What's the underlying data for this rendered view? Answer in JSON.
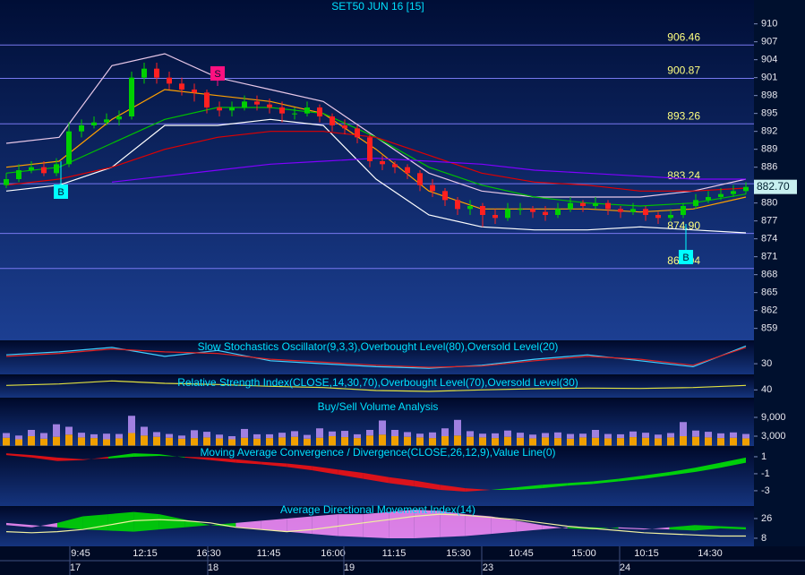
{
  "chart_data": [
    {
      "type": "candlestick",
      "title": "SET50 JUN 16  [15]",
      "open": [
        883,
        884,
        885.5,
        886,
        885,
        886.5,
        892,
        893,
        893.5,
        894,
        894.5,
        901,
        902.5,
        901,
        900,
        899,
        898.5,
        896,
        895.5,
        896,
        897,
        896.5,
        896,
        895,
        895,
        896,
        894.5,
        893,
        892.5,
        891,
        887,
        886.5,
        886,
        885,
        883,
        882,
        880.5,
        879,
        879.5,
        878,
        877.5,
        879,
        879,
        878.5,
        878,
        879,
        880,
        879.5,
        880,
        879,
        878.5,
        879,
        878,
        877.5,
        878,
        879.5,
        880.5,
        881,
        881.5,
        882
      ],
      "high": [
        885,
        886.5,
        887,
        887,
        887.5,
        893.5,
        894,
        894.5,
        895,
        895.5,
        902,
        903.5,
        903.5,
        902,
        901,
        900,
        899,
        897,
        897,
        898,
        898,
        897.5,
        897,
        896,
        897,
        896.5,
        895,
        894,
        893,
        891.5,
        888,
        887,
        886.5,
        885.5,
        884,
        882.5,
        881,
        880.5,
        880,
        879,
        880,
        880,
        879.5,
        879.5,
        880,
        881,
        880.5,
        881,
        880.5,
        879.5,
        880,
        879.5,
        878.5,
        879,
        880,
        881.5,
        882,
        882.5,
        883,
        883.5
      ],
      "low": [
        882.5,
        883.5,
        885,
        884.5,
        884.5,
        886,
        891,
        892.5,
        893,
        893,
        894,
        900,
        900,
        899,
        898,
        897,
        895,
        894.5,
        894.5,
        895.5,
        895.5,
        895,
        893.5,
        894,
        894.5,
        893.5,
        892,
        891.5,
        890,
        886,
        885.5,
        885,
        884,
        882,
        881,
        879.5,
        878,
        878,
        876,
        876.5,
        877,
        878,
        877.5,
        877,
        877.5,
        878.5,
        878.5,
        879,
        878,
        877.5,
        878,
        877,
        876.5,
        877,
        877.5,
        879,
        880,
        880.5,
        881,
        881.5
      ],
      "close": [
        884,
        885.5,
        886,
        885,
        886.5,
        892,
        893,
        893.5,
        894,
        894.5,
        901,
        902.5,
        901,
        900,
        899,
        898.5,
        896,
        895.5,
        896,
        897,
        896.5,
        896,
        895,
        895,
        896,
        894.5,
        893,
        892.5,
        891,
        887,
        886.5,
        886,
        885,
        883,
        882,
        880.5,
        879,
        879.5,
        878,
        877.5,
        879,
        879,
        878.5,
        878,
        879,
        880,
        879.5,
        880,
        879,
        878.5,
        879,
        878,
        877.5,
        878,
        879.5,
        880.5,
        881,
        881.5,
        882,
        882.7
      ],
      "up_color": "#00d000",
      "down_color": "#ff2020",
      "series": [
        {
          "color": "#e8c8e8",
          "values": [
            890,
            891,
            903,
            905,
            901,
            899,
            897,
            891,
            885,
            882,
            881,
            881,
            881,
            882,
            884
          ]
        },
        {
          "color": "#ffffff",
          "values": [
            882,
            883,
            886,
            893,
            893,
            894,
            893,
            884,
            878,
            876,
            875.5,
            875.5,
            876,
            875.5,
            875
          ]
        },
        {
          "color": "#ffa000",
          "values": [
            886,
            887,
            894,
            899,
            898,
            897,
            895,
            889,
            882,
            879,
            879,
            879,
            878.5,
            879,
            881
          ]
        },
        {
          "color": "#00c000",
          "values": [
            885,
            886,
            890,
            894,
            896,
            896,
            895,
            891,
            886,
            883,
            881,
            880,
            879.5,
            880,
            881.5
          ]
        },
        {
          "color": "#e00000",
          "values": [
            883,
            884,
            886,
            889,
            891,
            892,
            892,
            891,
            888,
            885,
            883.5,
            883,
            882,
            882,
            882.5
          ]
        },
        {
          "color": "#8000ff",
          "values": [
            null,
            null,
            883.5,
            884.5,
            885.5,
            886.5,
            887,
            887.5,
            887,
            886.5,
            885.5,
            885,
            884.5,
            884,
            884
          ]
        }
      ],
      "levels": [
        906.46,
        900.87,
        893.26,
        883.24,
        {
          "value": 874.9,
          "label": "874.90"
        },
        869.04
      ],
      "level_color": "#7878f0",
      "last_price": {
        "value": 882.7,
        "label": "882.70"
      },
      "signals": [
        "B",
        "S",
        "B"
      ],
      "x_labels": [
        "9:45",
        "12:15",
        "16:30",
        "11:45",
        "16:00",
        "11:15",
        "15:30",
        "10:45",
        "15:00",
        "10:15",
        "14:30"
      ],
      "date_labels": [
        "17",
        "18",
        "19",
        "23",
        "24"
      ],
      "ylim": [
        857,
        914
      ],
      "yticks": [
        910,
        907,
        904,
        901,
        898,
        895,
        892,
        889,
        886,
        883,
        880,
        877,
        874,
        871,
        868,
        865,
        862,
        859
      ]
    },
    {
      "type": "line",
      "title": "Slow Stochastics Oscillator(9,3,3),Overbought Level(80),Oversold Level(20)",
      "series": [
        {
          "color": "#40d0ff",
          "values": [
            60,
            70,
            85,
            55,
            75,
            40,
            30,
            20,
            15,
            25,
            45,
            60,
            40,
            20,
            90
          ]
        },
        {
          "color": "#e02020",
          "values": [
            55,
            65,
            80,
            70,
            65,
            45,
            35,
            25,
            18,
            22,
            40,
            55,
            45,
            25,
            85
          ]
        }
      ],
      "ylim": [
        0,
        100
      ],
      "yticks": [
        30
      ]
    },
    {
      "type": "line",
      "title": "Relative Strength Index(CLOSE,14,30,70),Overbought Level(70),Oversold Level(30)",
      "series": [
        {
          "color": "#e0e040",
          "values": [
            55,
            60,
            70,
            62,
            58,
            52,
            48,
            38,
            35,
            40,
            44,
            46,
            45,
            48,
            55
          ]
        }
      ],
      "ylim": [
        20,
        80
      ],
      "yticks": [
        40
      ]
    },
    {
      "type": "bar",
      "title": "Buy/Sell Volume Analysis",
      "series": [
        {
          "color": "#f0a000",
          "values": [
            2500,
            2000,
            3000,
            2200,
            2800,
            3500,
            2600,
            2400,
            2000,
            2300,
            4000,
            3200,
            2800,
            2500,
            2200,
            2400,
            2600,
            2300,
            2000,
            2500,
            2200,
            2400,
            2600,
            2800,
            2200,
            2500,
            3000,
            2700,
            2400,
            3200,
            3500,
            3000,
            2800,
            2600,
            2400,
            3000,
            3200,
            2800,
            2600,
            2400,
            2800,
            2500,
            2300,
            2600,
            2400,
            2200,
            2600,
            2500,
            2300,
            2400,
            2700,
            2500,
            2300,
            2600,
            3000,
            2800,
            2600,
            2400,
            2500,
            2300
          ]
        },
        {
          "color": "#a080e0",
          "values": [
            1500,
            1200,
            2000,
            1800,
            4000,
            2500,
            1500,
            1200,
            1800,
            1400,
            5500,
            2800,
            1500,
            1200,
            1000,
            2500,
            1800,
            1200,
            1000,
            2800,
            1400,
            1200,
            1500,
            1800,
            1200,
            3000,
            1500,
            2000,
            1200,
            1800,
            4500,
            2000,
            1500,
            1200,
            1800,
            2500,
            5000,
            1800,
            1200,
            1500,
            2000,
            1600,
            1200,
            1400,
            1800,
            1500,
            1200,
            2500,
            1400,
            1200,
            1800,
            1600,
            1200,
            1400,
            4500,
            2000,
            1800,
            1500,
            1700,
            1400
          ]
        }
      ],
      "ylim": [
        0,
        14000
      ],
      "yticks": [
        {
          "value": 9000,
          "label": "9,000"
        },
        {
          "value": 3000,
          "label": "3,000"
        }
      ]
    },
    {
      "type": "area",
      "title": "Moving Average Convergence / Divergence(CLOSE,26,12,9),Value Line(0)",
      "series": [
        {
          "color": "#00f000",
          "values": [
            1.2,
            0.9,
            0.5,
            0.6,
            1.0,
            1.4,
            1.3,
            0.9,
            0.6,
            0.3,
            0.1,
            -0.2,
            -0.6,
            -1.1,
            -1.6,
            -2.1,
            -2.5,
            -2.9,
            -3.1,
            -2.9,
            -2.6,
            -2.3,
            -2.1,
            -1.9,
            -1.6,
            -1.2,
            -0.8,
            -0.3,
            0.3,
            0.9
          ]
        },
        {
          "color": "#ff1010",
          "values": [
            1.4,
            1.2,
            0.9,
            0.7,
            0.8,
            1.0,
            1.1,
            1.0,
            0.9,
            0.7,
            0.4,
            0.2,
            -0.1,
            -0.5,
            -0.9,
            -1.4,
            -1.8,
            -2.3,
            -2.7,
            -2.9,
            -2.9,
            -2.7,
            -2.4,
            -2.2,
            -1.9,
            -1.6,
            -1.2,
            -0.8,
            -0.3,
            0.3
          ]
        }
      ],
      "ylim": [
        -4.8,
        2.05
      ],
      "yticks": [
        1,
        -1,
        -3
      ]
    },
    {
      "type": "area",
      "title": "Average Directional Movement Index(14)",
      "series": [
        {
          "color": "#00e000",
          "values": [
            20,
            18,
            22,
            28,
            30,
            32,
            30,
            25,
            20,
            18,
            16,
            14,
            12,
            10,
            9,
            8,
            8,
            9,
            10,
            12,
            14,
            16,
            18,
            18,
            17,
            16,
            18,
            20,
            19,
            18
          ]
        },
        {
          "color": "#ff90ff",
          "values": [
            22,
            20,
            18,
            16,
            15,
            14,
            16,
            18,
            20,
            22,
            24,
            26,
            28,
            30,
            30,
            32,
            34,
            33,
            30,
            28,
            24,
            20,
            17,
            16,
            18,
            17,
            16,
            15,
            17,
            16
          ]
        },
        {
          "color": "#f0f0a0",
          "values": [
            14,
            13,
            14,
            16,
            20,
            24,
            25,
            24,
            22,
            18,
            16,
            14,
            16,
            19,
            22,
            25,
            28,
            30,
            29,
            27,
            25,
            22,
            19,
            17,
            15,
            13,
            12,
            11,
            10,
            10
          ]
        }
      ],
      "ylim": [
        0.6,
        36.6
      ],
      "yticks": [
        26,
        8
      ]
    }
  ]
}
